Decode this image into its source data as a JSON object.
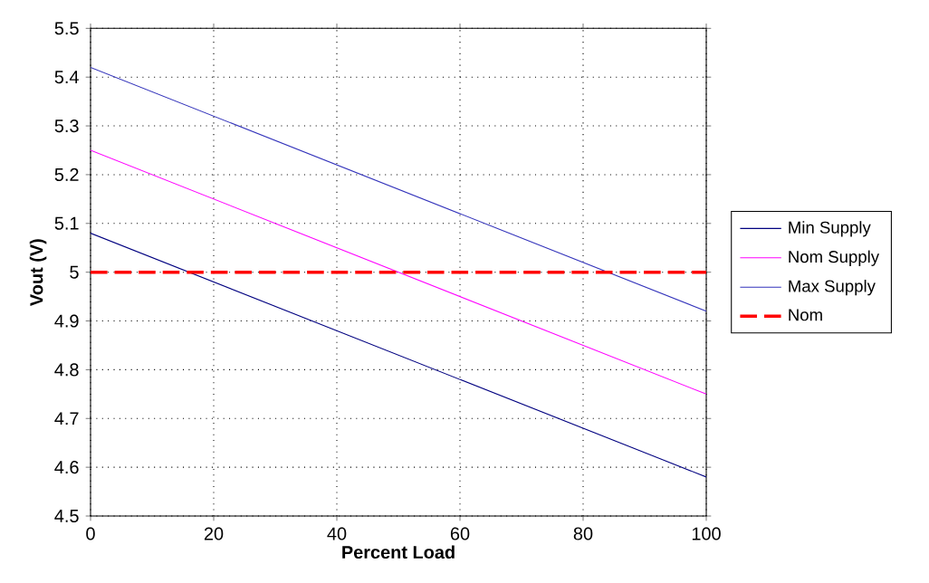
{
  "chart_data": {
    "type": "line",
    "xlabel": "Percent Load",
    "ylabel": "Vout (V)",
    "x": [
      0,
      100
    ],
    "series": [
      {
        "name": "Min Supply",
        "color": "#000080",
        "values": [
          5.08,
          4.58
        ],
        "line_style": "solid"
      },
      {
        "name": "Nom Supply",
        "color": "#ff00ff",
        "values": [
          5.25,
          4.75
        ],
        "line_style": "solid"
      },
      {
        "name": "Max Supply",
        "color": "#3333bb",
        "values": [
          5.42,
          4.92
        ],
        "line_style": "solid"
      },
      {
        "name": "Nom",
        "color": "#ff0000",
        "values": [
          5.0,
          5.0
        ],
        "line_style": "dashed"
      }
    ],
    "xlim": [
      0,
      100
    ],
    "ylim": [
      4.5,
      5.5
    ],
    "xticks": [
      0,
      20,
      40,
      60,
      80,
      100
    ],
    "yticks": [
      4.5,
      4.6,
      4.7,
      4.8,
      4.9,
      5,
      5.1,
      5.2,
      5.3,
      5.4,
      5.5
    ],
    "grid": true,
    "legend": "right",
    "marker": "none"
  }
}
